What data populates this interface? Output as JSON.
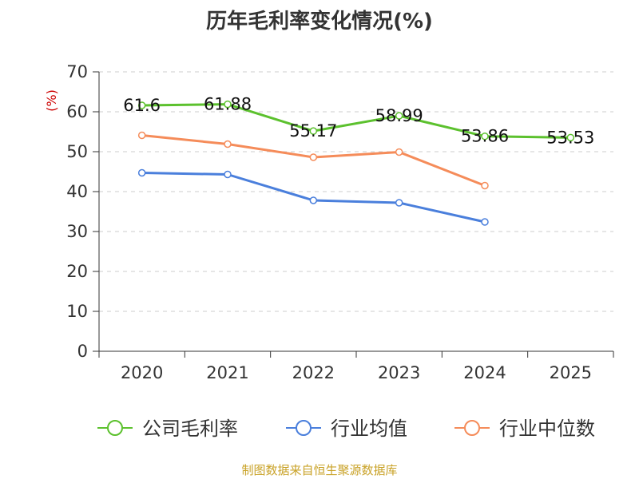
{
  "chart_data": {
    "type": "line",
    "title": "历年毛利率变化情况(%)",
    "ylabel": "(%)",
    "xlabel": "",
    "categories": [
      "2020",
      "2021",
      "2022",
      "2023",
      "2024",
      "2025"
    ],
    "ylim": [
      0,
      70
    ],
    "yticks": [
      0,
      10,
      20,
      30,
      40,
      50,
      60,
      70
    ],
    "grid": true,
    "legend_position": "bottom",
    "series": [
      {
        "name": "公司毛利率",
        "color": "#5cc12e",
        "values": [
          61.6,
          61.88,
          55.17,
          58.99,
          53.86,
          53.53
        ],
        "labels": [
          "61.6",
          "61.88",
          "55.17",
          "58.99",
          "53.86",
          "53.53"
        ]
      },
      {
        "name": "行业均值",
        "color": "#4a7fdc",
        "values": [
          44.7,
          44.3,
          37.8,
          37.2,
          32.4,
          null
        ]
      },
      {
        "name": "行业中位数",
        "color": "#f58c5a",
        "values": [
          54.1,
          51.9,
          48.6,
          49.9,
          41.5,
          null
        ]
      }
    ]
  },
  "source": "制图数据来自恒生聚源数据库"
}
